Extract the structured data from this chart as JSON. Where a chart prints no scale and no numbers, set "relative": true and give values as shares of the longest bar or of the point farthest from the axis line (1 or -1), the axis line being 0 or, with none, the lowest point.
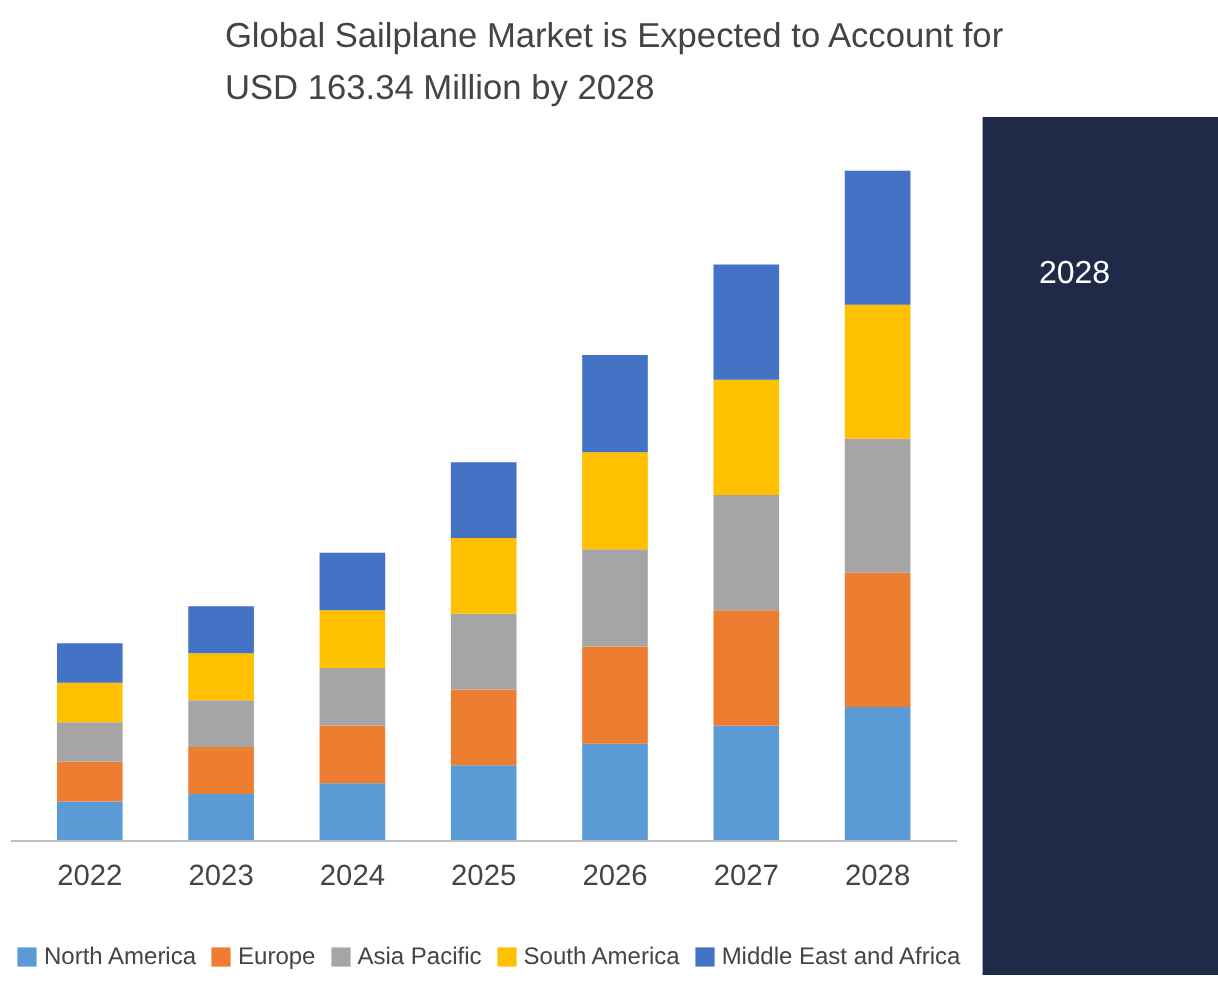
{
  "chart_data": {
    "type": "bar",
    "title": "Global Sailplane Market is Expected to Account for\nUSD 163.34 Million by 2028",
    "categories": [
      "2022",
      "2023",
      "2024",
      "2025",
      "2026",
      "2027",
      "2028"
    ],
    "stacked": true,
    "relative": true,
    "legend": "bottom",
    "annotations": [
      "2028"
    ],
    "series": [
      {
        "name": "North America",
        "color": "#5b9bd5",
        "values": [
          0.059,
          0.07,
          0.086,
          0.113,
          0.145,
          0.172,
          0.2
        ]
      },
      {
        "name": "Europe",
        "color": "#ed7d31",
        "values": [
          0.059,
          0.07,
          0.086,
          0.113,
          0.145,
          0.172,
          0.2
        ]
      },
      {
        "name": "Asia Pacific",
        "color": "#a5a5a5",
        "values": [
          0.059,
          0.07,
          0.086,
          0.113,
          0.145,
          0.172,
          0.2
        ]
      },
      {
        "name": "South America",
        "color": "#ffc000",
        "values": [
          0.059,
          0.07,
          0.086,
          0.113,
          0.145,
          0.172,
          0.2
        ]
      },
      {
        "name": "Middle East and Africa",
        "color": "#4472c4",
        "values": [
          0.059,
          0.07,
          0.086,
          0.113,
          0.145,
          0.172,
          0.2
        ]
      }
    ]
  }
}
